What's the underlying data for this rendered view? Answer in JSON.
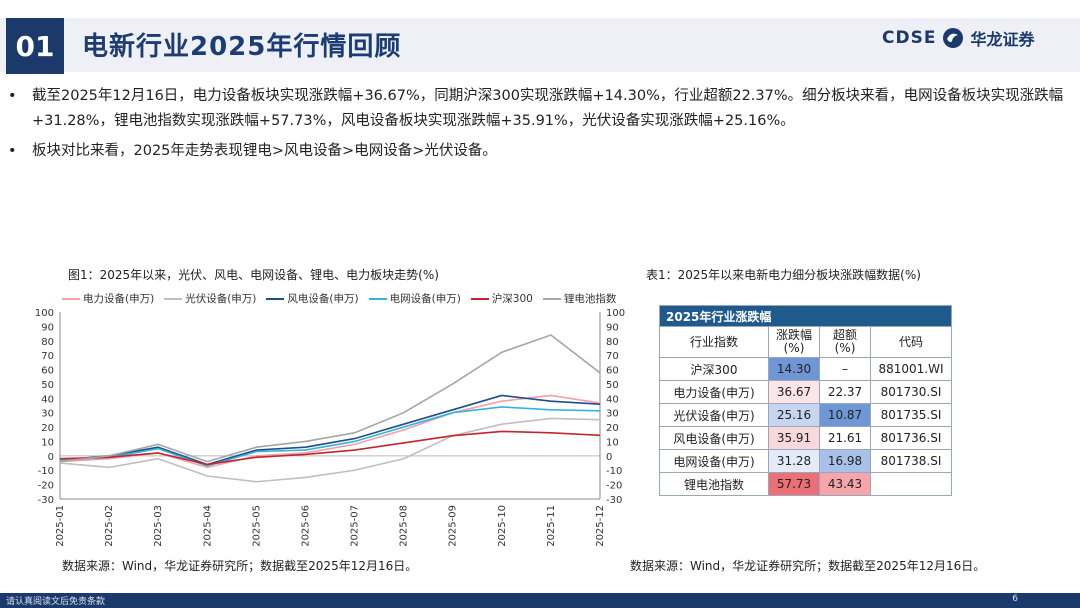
{
  "header": {
    "section_number": "01",
    "title": "电新行业2025年行情回顾",
    "logo_en": "CDSE",
    "logo_cn": "华龙证券"
  },
  "bullets": [
    "截至2025年12月16日，电力设备板块实现涨跌幅+36.67%，同期沪深300实现涨跌幅+14.30%，行业超额22.37%。细分板块来看，电网设备板块实现涨跌幅+31.28%，锂电池指数实现涨跌幅+57.73%，风电设备板块实现涨跌幅+35.91%，光伏设备实现涨跌幅+25.16%。",
    "板块对比来看，2025年走势表现锂电>风电设备>电网设备>光伏设备。"
  ],
  "figure": {
    "title": "图1：2025年以来，光伏、风电、电网设备、锂电、电力板块走势(%)",
    "source": "数据来源：Wind，华龙证券研究所；数据截至2025年12月16日。"
  },
  "chart_data": {
    "type": "line",
    "x": [
      "2025-01",
      "2025-02",
      "2025-03",
      "2025-04",
      "2025-05",
      "2025-06",
      "2025-07",
      "2025-08",
      "2025-09",
      "2025-10",
      "2025-11",
      "2025-12"
    ],
    "left_axis": {
      "ylim": [
        -30,
        100
      ],
      "ticks": [
        -30,
        -20,
        -10,
        0,
        10,
        20,
        30,
        40,
        50,
        60,
        70,
        80,
        90,
        100
      ]
    },
    "right_axis": {
      "ylim": [
        -30,
        100
      ],
      "ticks": [
        -30,
        -20,
        -10,
        0,
        10,
        20,
        30,
        40,
        50,
        60,
        70,
        80,
        90,
        100
      ]
    },
    "legend_position": "top",
    "series": [
      {
        "name": "电力设备(申万)",
        "color": "#f2a0aa",
        "values": [
          -4,
          -2,
          2,
          -8,
          0,
          2,
          8,
          18,
          30,
          38,
          42,
          36.67
        ]
      },
      {
        "name": "光伏设备(申万)",
        "color": "#bfbfbf",
        "values": [
          -5,
          -8,
          -2,
          -14,
          -18,
          -15,
          -10,
          -2,
          14,
          22,
          26,
          25.16
        ]
      },
      {
        "name": "风电设备(申万)",
        "color": "#1f4e8c",
        "values": [
          -3,
          0,
          6,
          -6,
          4,
          6,
          12,
          22,
          32,
          42,
          38,
          35.91
        ]
      },
      {
        "name": "电网设备(申万)",
        "color": "#35b3dd",
        "values": [
          -3,
          -1,
          5,
          -7,
          3,
          4,
          10,
          20,
          30,
          34,
          32,
          31.28
        ]
      },
      {
        "name": "沪深300",
        "color": "#c0262d",
        "values": [
          -2,
          -1,
          2,
          -6,
          -1,
          1,
          4,
          9,
          14,
          17,
          16,
          14.3
        ]
      },
      {
        "name": "锂电池指数",
        "color": "#a6a6a6",
        "values": [
          -4,
          0,
          8,
          -4,
          6,
          10,
          16,
          30,
          50,
          72,
          84,
          57.73
        ]
      }
    ],
    "x_label_rotation": "vertical"
  },
  "table": {
    "title": "表1：2025年以来电新电力细分板块涨跌幅数据(%)",
    "header_label": "2025年行业涨跌幅",
    "columns": [
      "行业指数",
      "涨跌幅(%)",
      "超额(%)",
      "代码"
    ],
    "rows": [
      {
        "name": "沪深300",
        "change": "14.30",
        "excess": "–",
        "code": "881001.WI"
      },
      {
        "name": "电力设备(申万)",
        "change": "36.67",
        "excess": "22.37",
        "code": "801730.SI"
      },
      {
        "name": "光伏设备(申万)",
        "change": "25.16",
        "excess": "10.87",
        "code": "801735.SI"
      },
      {
        "name": "风电设备(申万)",
        "change": "35.91",
        "excess": "21.61",
        "code": "801736.SI"
      },
      {
        "name": "电网设备(申万)",
        "change": "31.28",
        "excess": "16.98",
        "code": "801738.SI"
      },
      {
        "name": "锂电池指数",
        "change": "57.73",
        "excess": "43.43",
        "code": ""
      }
    ],
    "cell_colors": {
      "change": [
        "#6f97d6",
        "#fbe5e6",
        "#c7d6f0",
        "#f8d8da",
        "#e4ebf8",
        "#ea6f76"
      ],
      "excess": [
        "#ffffff",
        "#ffffff",
        "#6f97d6",
        "#ffffff",
        "#a9c1e8",
        "#f4a6aa"
      ]
    },
    "source": "数据来源：Wind，华龙证券研究所；数据截至2025年12月16日。"
  },
  "footer": {
    "disclaimer": "请认真阅读文后免责条款",
    "page_number": "6"
  }
}
